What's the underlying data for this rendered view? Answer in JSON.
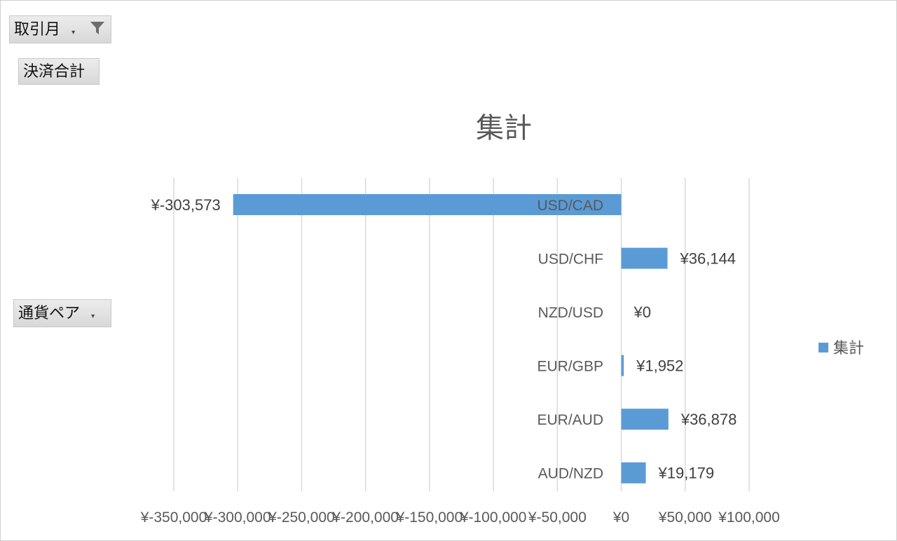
{
  "pivot": {
    "filter_field": "取引月",
    "value_field": "決済合計",
    "axis_field": "通貨ペア"
  },
  "colors": {
    "bar": "#5b9bd5",
    "grid": "#d9d9d9"
  },
  "chart_data": {
    "type": "bar",
    "orientation": "horizontal",
    "title": "集計",
    "categories": [
      "USD/CAD",
      "USD/CHF",
      "NZD/USD",
      "EUR/GBP",
      "EUR/AUD",
      "AUD/NZD"
    ],
    "series": [
      {
        "name": "集計",
        "values": [
          -303573,
          36144,
          0,
          1952,
          36878,
          19179
        ]
      }
    ],
    "data_labels": [
      "¥-303,573",
      "¥36,144",
      "¥0",
      "¥1,952",
      "¥36,878",
      "¥19,179"
    ],
    "xlim": [
      -350000,
      100000
    ],
    "xticks": [
      -350000,
      -300000,
      -250000,
      -200000,
      -150000,
      -100000,
      -50000,
      0,
      50000,
      100000
    ],
    "xtick_labels": [
      "¥-350,000",
      "¥-300,000",
      "¥-250,000",
      "¥-200,000",
      "¥-150,000",
      "¥-100,000",
      "¥-50,000",
      "¥0",
      "¥50,000",
      "¥100,000"
    ],
    "grid": true,
    "legend": "right"
  }
}
